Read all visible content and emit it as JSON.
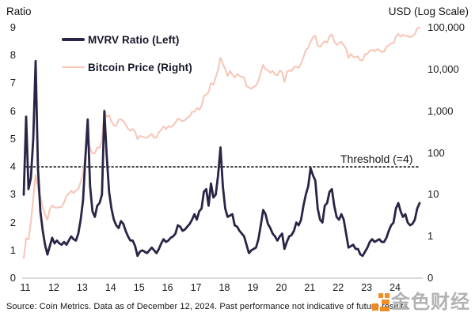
{
  "header": {
    "left_axis_title": "Ratio",
    "right_axis_title": "USD (Log Scale)"
  },
  "legend": [
    {
      "label": "MVRV Ratio (Left)",
      "color": "#2a2446"
    },
    {
      "label": "Bitcoin Price (Right)",
      "color": "#f6c7b9"
    }
  ],
  "threshold": {
    "label": "Threshold (=4)",
    "value": 4
  },
  "footer": {
    "source_text": "Source: Coin Metrics. Data as of December 12, 2024. Past performance not indicative of future results."
  },
  "watermark": {
    "text": "金色财经",
    "logo_color": "#f0881e",
    "text_color": "#b2b2b2"
  },
  "chart_data": {
    "type": "line",
    "title": "",
    "grid": false,
    "legend_position": "top-left",
    "left_axis": {
      "label": "Ratio",
      "range": [
        0,
        9
      ],
      "ticks": [
        "9",
        "8",
        "7",
        "6",
        "5",
        "4",
        "3",
        "2",
        "1",
        "0"
      ]
    },
    "right_axis": {
      "label": "USD (Log Scale)",
      "scale": "log",
      "ticks": [
        "100,000",
        "10,000",
        "1,000",
        "100",
        "10",
        "1",
        "0"
      ]
    },
    "x_axis": {
      "ticks": [
        "11",
        "12",
        "13",
        "14",
        "15",
        "16",
        "17",
        "18",
        "19",
        "20",
        "21",
        "22",
        "23",
        "24"
      ],
      "range_years": [
        2011,
        2025
      ]
    },
    "threshold_value": 4,
    "series": [
      {
        "name": "MVRV Ratio (Left)",
        "axis": "left",
        "color": "#2a2446",
        "start_year": 2011,
        "interval_months": 1,
        "values": [
          3.0,
          5.8,
          3.2,
          3.6,
          5.0,
          7.8,
          3.9,
          2.4,
          1.7,
          1.2,
          0.85,
          1.15,
          1.45,
          1.25,
          1.35,
          1.25,
          1.2,
          1.3,
          1.2,
          1.35,
          1.5,
          1.4,
          1.35,
          1.6,
          2.1,
          2.8,
          4.3,
          5.7,
          3.3,
          2.4,
          2.2,
          2.6,
          2.7,
          3.0,
          6.0,
          4.4,
          3.1,
          2.5,
          2.1,
          1.9,
          1.8,
          2.05,
          1.95,
          1.7,
          1.5,
          1.35,
          1.35,
          1.15,
          0.8,
          0.95,
          1.0,
          0.95,
          0.9,
          1.0,
          1.1,
          1.0,
          0.9,
          1.05,
          1.25,
          1.4,
          1.3,
          1.35,
          1.45,
          1.5,
          1.6,
          1.9,
          1.85,
          1.7,
          1.75,
          1.85,
          1.95,
          2.1,
          2.3,
          2.1,
          2.4,
          2.5,
          3.1,
          3.2,
          2.6,
          3.4,
          2.9,
          3.0,
          3.7,
          4.7,
          3.3,
          2.5,
          2.2,
          2.25,
          2.3,
          1.9,
          1.85,
          1.7,
          1.6,
          1.5,
          1.2,
          0.9,
          1.0,
          1.05,
          1.1,
          1.4,
          1.9,
          2.45,
          2.3,
          1.95,
          1.8,
          1.6,
          1.5,
          1.35,
          1.5,
          1.6,
          1.05,
          1.3,
          1.5,
          1.55,
          1.7,
          2.0,
          1.9,
          2.1,
          2.6,
          3.0,
          3.3,
          3.95,
          3.7,
          3.5,
          2.5,
          2.1,
          2.0,
          2.6,
          2.7,
          3.1,
          3.2,
          2.6,
          2.2,
          2.1,
          2.3,
          2.1,
          1.6,
          1.1,
          1.15,
          1.2,
          1.05,
          1.05,
          0.85,
          0.8,
          0.95,
          1.1,
          1.3,
          1.4,
          1.3,
          1.35,
          1.4,
          1.3,
          1.3,
          1.45,
          1.7,
          1.9,
          2.0,
          2.5,
          2.7,
          2.4,
          2.2,
          2.3,
          2.0,
          1.9,
          1.95,
          2.1,
          2.5,
          2.7
        ]
      },
      {
        "name": "Bitcoin Price (Right)",
        "axis": "right",
        "color": "#f6c7b9",
        "start_year": 2011,
        "interval_months": 1,
        "values": [
          0.3,
          0.9,
          0.85,
          2.2,
          8,
          30,
          14,
          9,
          5,
          3.3,
          2.5,
          4.5,
          5.5,
          4.9,
          4.9,
          5,
          5.1,
          6.5,
          9.3,
          10.5,
          12.3,
          11,
          12.5,
          13.5,
          20,
          33,
          93,
          230,
          128,
          97,
          98,
          135,
          133,
          203,
          1100,
          730,
          800,
          560,
          450,
          445,
          620,
          640,
          580,
          480,
          380,
          340,
          375,
          320,
          215,
          255,
          245,
          235,
          230,
          260,
          285,
          230,
          235,
          310,
          360,
          430,
          370,
          435,
          415,
          450,
          530,
          670,
          620,
          575,
          610,
          700,
          745,
          965,
          970,
          1190,
          1080,
          1350,
          2300,
          2480,
          2870,
          4700,
          4340,
          6450,
          9900,
          19000,
          13500,
          10300,
          6900,
          9250,
          7500,
          6400,
          7750,
          7000,
          6600,
          6300,
          4000,
          3700,
          3450,
          3850,
          4100,
          5300,
          8550,
          12900,
          10100,
          9600,
          8300,
          9150,
          7550,
          7200,
          9350,
          8550,
          5000,
          8600,
          9450,
          9150,
          11350,
          11650,
          10800,
          13800,
          19700,
          29000,
          33100,
          45200,
          58800,
          63500,
          37300,
          35000,
          41600,
          47100,
          43800,
          61300,
          69000,
          46200,
          38500,
          43200,
          45500,
          37700,
          31800,
          19000,
          23300,
          20050,
          19400,
          20500,
          16500,
          16550,
          23100,
          23500,
          28500,
          29250,
          27200,
          30450,
          29200,
          26000,
          26950,
          34650,
          37700,
          42250,
          42600,
          61400,
          71300,
          60600,
          67500,
          62700,
          64600,
          59000,
          63300,
          70200,
          96400,
          101000
        ]
      }
    ]
  }
}
